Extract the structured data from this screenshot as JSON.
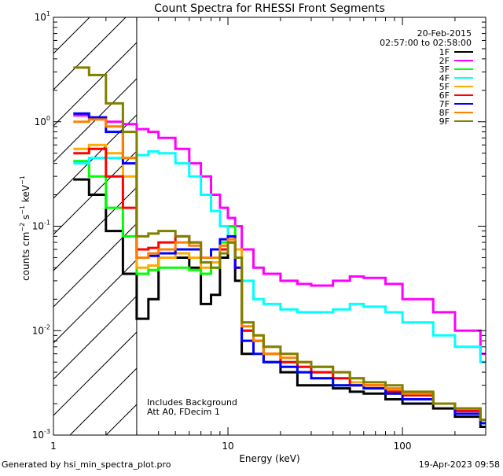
{
  "chart_data": {
    "type": "line",
    "title": "Count Spectra for RHESSI Front Segments",
    "xlabel": "Energy (keV)",
    "ylabel_base": "counts cm",
    "ylabel_exp1": "−2",
    "ylabel_mid": " s",
    "ylabel_exp2": "−1",
    "ylabel_end": " keV",
    "ylabel_exp3": "−1",
    "xscale": "log",
    "yscale": "log",
    "xlim": [
      1,
      300
    ],
    "ylim": [
      0.001,
      10
    ],
    "x_ticks": [
      {
        "value": 1,
        "label": "1"
      },
      {
        "value": 10,
        "label": "10"
      },
      {
        "value": 100,
        "label": "100"
      }
    ],
    "y_ticks": [
      {
        "value": 10,
        "base": "10",
        "exp": "1"
      },
      {
        "value": 1,
        "base": "10",
        "exp": "0"
      },
      {
        "value": 0.1,
        "base": "10",
        "exp": "-1"
      },
      {
        "value": 0.01,
        "base": "10",
        "exp": "-2"
      },
      {
        "value": 0.001,
        "base": "10",
        "exp": "-3"
      }
    ],
    "date": "20-Feb-2015",
    "time_range": "02:57:00 to 02:58:00",
    "annotation_1": "Includes Background",
    "annotation_2": "Att A0, FDecim 1",
    "attenuator_threshold_keV": 3,
    "legend_position": "top-right",
    "series": [
      {
        "name": "1F",
        "color": "#000000",
        "x": [
          1.3,
          1.6,
          2.0,
          2.5,
          3.0,
          3.5,
          4.0,
          5.0,
          6.0,
          7.0,
          8.0,
          9.0,
          10.0,
          11.0,
          12.0,
          14.0,
          16.0,
          20.0,
          25.0,
          30.0,
          40.0,
          50.0,
          60.0,
          80.0,
          100.0,
          150.0,
          200.0,
          280.0
        ],
        "values": [
          0.28,
          0.2,
          0.09,
          0.035,
          0.013,
          0.02,
          0.05,
          0.05,
          0.04,
          0.018,
          0.022,
          0.05,
          0.07,
          0.03,
          0.006,
          0.008,
          0.005,
          0.004,
          0.003,
          0.003,
          0.0028,
          0.0026,
          0.0025,
          0.0022,
          0.002,
          0.0018,
          0.0015,
          0.0012
        ]
      },
      {
        "name": "2F",
        "color": "#ff00ff",
        "x": [
          1.3,
          1.6,
          2.0,
          2.5,
          3.0,
          3.5,
          4.0,
          5.0,
          6.0,
          7.0,
          8.0,
          9.0,
          10.0,
          11.0,
          12.0,
          14.0,
          16.0,
          20.0,
          25.0,
          30.0,
          40.0,
          50.0,
          60.0,
          80.0,
          100.0,
          150.0,
          200.0,
          280.0
        ],
        "values": [
          1.15,
          1.1,
          1.0,
          0.95,
          0.85,
          0.8,
          0.7,
          0.55,
          0.4,
          0.3,
          0.2,
          0.15,
          0.12,
          0.1,
          0.06,
          0.04,
          0.035,
          0.03,
          0.028,
          0.027,
          0.03,
          0.033,
          0.032,
          0.028,
          0.02,
          0.015,
          0.01,
          0.006
        ]
      },
      {
        "name": "3F",
        "color": "#00ff00",
        "x": [
          1.3,
          1.6,
          2.0,
          2.5,
          3.0,
          3.5,
          4.0,
          5.0,
          6.0,
          7.0,
          8.0,
          9.0,
          10.0,
          11.0,
          12.0,
          14.0,
          16.0,
          20.0,
          25.0,
          30.0,
          40.0,
          50.0,
          60.0,
          80.0,
          100.0,
          150.0,
          200.0,
          280.0
        ],
        "values": [
          0.42,
          0.3,
          0.15,
          0.08,
          0.035,
          0.038,
          0.04,
          0.04,
          0.038,
          0.035,
          0.04,
          0.07,
          0.1,
          0.05,
          0.01,
          0.008,
          0.006,
          0.005,
          0.004,
          0.0035,
          0.003,
          0.003,
          0.0028,
          0.0025,
          0.0022,
          0.002,
          0.0017,
          0.0013
        ]
      },
      {
        "name": "4F",
        "color": "#00ffff",
        "x": [
          1.3,
          1.6,
          2.0,
          2.5,
          3.0,
          3.5,
          4.0,
          5.0,
          6.0,
          7.0,
          8.0,
          9.0,
          10.0,
          11.0,
          12.0,
          14.0,
          16.0,
          20.0,
          25.0,
          30.0,
          40.0,
          50.0,
          60.0,
          80.0,
          100.0,
          150.0,
          200.0,
          280.0
        ],
        "values": [
          0.4,
          0.45,
          0.45,
          0.45,
          0.48,
          0.52,
          0.5,
          0.4,
          0.3,
          0.2,
          0.14,
          0.1,
          0.08,
          0.06,
          0.03,
          0.02,
          0.018,
          0.016,
          0.015,
          0.015,
          0.016,
          0.018,
          0.017,
          0.015,
          0.012,
          0.009,
          0.007,
          0.005
        ]
      },
      {
        "name": "5F",
        "color": "#ffaa00",
        "x": [
          1.3,
          1.6,
          2.0,
          2.5,
          3.0,
          3.5,
          4.0,
          5.0,
          6.0,
          7.0,
          8.0,
          9.0,
          10.0,
          11.0,
          12.0,
          14.0,
          16.0,
          20.0,
          25.0,
          30.0,
          40.0,
          50.0,
          60.0,
          80.0,
          100.0,
          150.0,
          200.0,
          280.0
        ],
        "values": [
          0.55,
          0.6,
          0.5,
          0.3,
          0.04,
          0.042,
          0.05,
          0.055,
          0.05,
          0.04,
          0.045,
          0.065,
          0.08,
          0.06,
          0.012,
          0.009,
          0.007,
          0.006,
          0.005,
          0.004,
          0.0035,
          0.0032,
          0.003,
          0.0027,
          0.0025,
          0.002,
          0.0018,
          0.0014
        ]
      },
      {
        "name": "6F",
        "color": "#ff0000",
        "x": [
          1.3,
          1.6,
          2.0,
          2.5,
          3.0,
          3.5,
          4.0,
          5.0,
          6.0,
          7.0,
          8.0,
          9.0,
          10.0,
          11.0,
          12.0,
          14.0,
          16.0,
          20.0,
          25.0,
          30.0,
          40.0,
          50.0,
          60.0,
          80.0,
          100.0,
          150.0,
          200.0,
          280.0
        ],
        "values": [
          0.5,
          0.55,
          0.3,
          0.15,
          0.06,
          0.062,
          0.07,
          0.08,
          0.07,
          0.05,
          0.05,
          0.06,
          0.07,
          0.04,
          0.01,
          0.008,
          0.006,
          0.005,
          0.0045,
          0.004,
          0.0035,
          0.003,
          0.003,
          0.0026,
          0.0024,
          0.002,
          0.0017,
          0.0014
        ]
      },
      {
        "name": "7F",
        "color": "#0000ff",
        "x": [
          1.3,
          1.6,
          2.0,
          2.5,
          3.0,
          3.5,
          4.0,
          5.0,
          6.0,
          7.0,
          8.0,
          9.0,
          10.0,
          11.0,
          12.0,
          14.0,
          16.0,
          20.0,
          25.0,
          30.0,
          40.0,
          50.0,
          60.0,
          80.0,
          100.0,
          150.0,
          200.0,
          280.0
        ],
        "values": [
          1.2,
          1.1,
          0.8,
          0.4,
          0.05,
          0.052,
          0.055,
          0.06,
          0.06,
          0.05,
          0.06,
          0.075,
          0.08,
          0.04,
          0.008,
          0.006,
          0.005,
          0.0045,
          0.004,
          0.0035,
          0.003,
          0.003,
          0.0028,
          0.0025,
          0.0022,
          0.002,
          0.0016,
          0.0013
        ]
      },
      {
        "name": "8F",
        "color": "#ff8000",
        "x": [
          1.3,
          1.6,
          2.0,
          2.5,
          3.0,
          3.5,
          4.0,
          5.0,
          6.0,
          7.0,
          8.0,
          9.0,
          10.0,
          11.0,
          12.0,
          14.0,
          16.0,
          20.0,
          25.0,
          30.0,
          40.0,
          50.0,
          60.0,
          80.0,
          100.0,
          150.0,
          200.0,
          280.0
        ],
        "values": [
          1.0,
          1.05,
          0.9,
          0.45,
          0.05,
          0.055,
          0.06,
          0.07,
          0.065,
          0.05,
          0.05,
          0.065,
          0.075,
          0.05,
          0.011,
          0.008,
          0.006,
          0.0055,
          0.005,
          0.0045,
          0.004,
          0.0035,
          0.003,
          0.0028,
          0.0025,
          0.002,
          0.0018,
          0.0014
        ]
      },
      {
        "name": "9F",
        "color": "#808000",
        "x": [
          1.3,
          1.6,
          2.0,
          2.5,
          3.0,
          3.5,
          4.0,
          5.0,
          6.0,
          7.0,
          8.0,
          9.0,
          10.0,
          11.0,
          12.0,
          14.0,
          16.0,
          20.0,
          25.0,
          30.0,
          40.0,
          50.0,
          60.0,
          80.0,
          100.0,
          150.0,
          200.0,
          280.0
        ],
        "values": [
          3.3,
          2.8,
          1.5,
          0.8,
          0.08,
          0.085,
          0.09,
          0.08,
          0.07,
          0.045,
          0.04,
          0.055,
          0.07,
          0.05,
          0.012,
          0.009,
          0.007,
          0.006,
          0.005,
          0.0045,
          0.004,
          0.0035,
          0.0032,
          0.003,
          0.0026,
          0.002,
          0.0018,
          0.0014
        ]
      }
    ]
  },
  "footer": {
    "generated_by": "Generated by hsi_min_spectra_plot.pro",
    "timestamp": "19-Apr-2023 09:58"
  }
}
